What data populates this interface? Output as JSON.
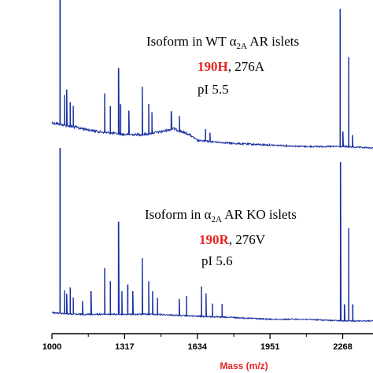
{
  "chart_data": {
    "type": "line",
    "xlabel": "Mass (m/z)",
    "xlim": [
      1000,
      2400
    ],
    "x_ticks": [
      1000,
      1317,
      1634,
      1951,
      2268
    ],
    "x_tick_labels": [
      "1000",
      "1317",
      "1634",
      "1951",
      "2268"
    ],
    "line_color": "#1a2fa0",
    "accent_color": "#e8231f",
    "panels": [
      {
        "name": "top",
        "annotation": {
          "line1_pre": "Isoform in WT ",
          "alpha": "α",
          "alpha_sub": "2A",
          "line1_post": " AR islets",
          "variant_highlight": "190H",
          "variant_rest": ", 276A",
          "pi": "pI 5.5"
        },
        "baseline": [
          [
            1000,
            0.18
          ],
          [
            1100,
            0.15
          ],
          [
            1200,
            0.12
          ],
          [
            1317,
            0.1
          ],
          [
            1400,
            0.1
          ],
          [
            1480,
            0.12
          ],
          [
            1530,
            0.14
          ],
          [
            1600,
            0.1
          ],
          [
            1634,
            0.06
          ],
          [
            1800,
            0.04
          ],
          [
            1951,
            0.03
          ],
          [
            2100,
            0.02
          ],
          [
            2268,
            0.02
          ],
          [
            2400,
            0.01
          ]
        ],
        "peaks": [
          {
            "x": 1036,
            "y": 1.0
          },
          {
            "x": 1055,
            "y": 0.2
          },
          {
            "x": 1064,
            "y": 0.24
          },
          {
            "x": 1080,
            "y": 0.16
          },
          {
            "x": 1093,
            "y": 0.14
          },
          {
            "x": 1230,
            "y": 0.26
          },
          {
            "x": 1255,
            "y": 0.18
          },
          {
            "x": 1290,
            "y": 0.44
          },
          {
            "x": 1300,
            "y": 0.2
          },
          {
            "x": 1335,
            "y": 0.16
          },
          {
            "x": 1394,
            "y": 0.32
          },
          {
            "x": 1422,
            "y": 0.2
          },
          {
            "x": 1436,
            "y": 0.14
          },
          {
            "x": 1520,
            "y": 0.12
          },
          {
            "x": 1556,
            "y": 0.1
          },
          {
            "x": 1670,
            "y": 0.08
          },
          {
            "x": 1689,
            "y": 0.06
          },
          {
            "x": 2257,
            "y": 0.92
          },
          {
            "x": 2268,
            "y": 0.1
          },
          {
            "x": 2294,
            "y": 0.6
          },
          {
            "x": 2310,
            "y": 0.08
          }
        ]
      },
      {
        "name": "bottom",
        "annotation": {
          "line1_pre": "Isoform in ",
          "alpha": "α",
          "alpha_sub": "2A",
          "line1_post": " AR KO islets",
          "variant_highlight": "190R",
          "variant_rest": ", 276V",
          "pi": "pI 5.6"
        },
        "baseline": [
          [
            1000,
            0.07
          ],
          [
            1100,
            0.06
          ],
          [
            1200,
            0.06
          ],
          [
            1317,
            0.06
          ],
          [
            1450,
            0.06
          ],
          [
            1600,
            0.05
          ],
          [
            1800,
            0.04
          ],
          [
            1951,
            0.03
          ],
          [
            2100,
            0.03
          ],
          [
            2268,
            0.02
          ],
          [
            2400,
            0.02
          ]
        ],
        "peaks": [
          {
            "x": 1036,
            "y": 1.0
          },
          {
            "x": 1055,
            "y": 0.14
          },
          {
            "x": 1064,
            "y": 0.12
          },
          {
            "x": 1080,
            "y": 0.16
          },
          {
            "x": 1093,
            "y": 0.1
          },
          {
            "x": 1133,
            "y": 0.08
          },
          {
            "x": 1170,
            "y": 0.14
          },
          {
            "x": 1230,
            "y": 0.28
          },
          {
            "x": 1255,
            "y": 0.2
          },
          {
            "x": 1290,
            "y": 0.56
          },
          {
            "x": 1305,
            "y": 0.14
          },
          {
            "x": 1331,
            "y": 0.18
          },
          {
            "x": 1352,
            "y": 0.14
          },
          {
            "x": 1394,
            "y": 0.34
          },
          {
            "x": 1422,
            "y": 0.2
          },
          {
            "x": 1439,
            "y": 0.14
          },
          {
            "x": 1460,
            "y": 0.1
          },
          {
            "x": 1555,
            "y": 0.1
          },
          {
            "x": 1587,
            "y": 0.12
          },
          {
            "x": 1652,
            "y": 0.18
          },
          {
            "x": 1672,
            "y": 0.14
          },
          {
            "x": 1700,
            "y": 0.08
          },
          {
            "x": 1742,
            "y": 0.08
          },
          {
            "x": 2258,
            "y": 0.96
          },
          {
            "x": 2275,
            "y": 0.1
          },
          {
            "x": 2294,
            "y": 0.56
          },
          {
            "x": 2312,
            "y": 0.1
          }
        ]
      }
    ]
  }
}
